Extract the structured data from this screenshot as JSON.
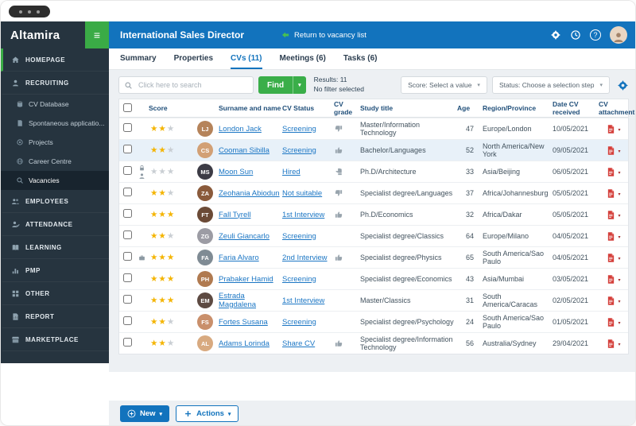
{
  "colors": {
    "sidebar_bg": "#26343f",
    "sidebar_active_bg": "#18242e",
    "accent_green": "#3aab46",
    "header_blue": "#1273bd",
    "link_blue": "#1b76c4",
    "star_gold": "#f4b400",
    "pdf_red": "#d43f3a",
    "content_bg": "#edf0f3"
  },
  "sidebar": {
    "logo": "Altamira",
    "items": [
      {
        "id": "homepage",
        "label": "HOMEPAGE",
        "icon": "home",
        "level": 1,
        "accent": true
      },
      {
        "id": "recruiting",
        "label": "RECRUITING",
        "icon": "recruit",
        "level": 1
      },
      {
        "id": "cv-database",
        "label": "CV Database",
        "icon": "db",
        "level": 2
      },
      {
        "id": "spontaneous-applications",
        "label": "Spontaneous applicatio...",
        "icon": "doc",
        "level": 2
      },
      {
        "id": "projects",
        "label": "Projects",
        "icon": "target",
        "level": 2
      },
      {
        "id": "career-centre",
        "label": "Career Centre",
        "icon": "globe",
        "level": 2
      },
      {
        "id": "vacancies",
        "label": "Vacancies",
        "icon": "magnifier",
        "level": 2,
        "active": true
      },
      {
        "id": "employees",
        "label": "EMPLOYEES",
        "icon": "people",
        "level": 1
      },
      {
        "id": "attendance",
        "label": "ATTENDANCE",
        "icon": "attendance",
        "level": 1
      },
      {
        "id": "learning",
        "label": "LEARNING",
        "icon": "book",
        "level": 1
      },
      {
        "id": "pmp",
        "label": "PMP",
        "icon": "pmp",
        "level": 1
      },
      {
        "id": "other",
        "label": "OTHER",
        "icon": "grid",
        "level": 1
      },
      {
        "id": "report",
        "label": "REPORT",
        "icon": "report",
        "level": 1
      },
      {
        "id": "marketplace",
        "label": "MARKETPLACE",
        "icon": "store",
        "level": 1
      }
    ]
  },
  "header": {
    "title": "International Sales Director",
    "back_label": "Return to vacancy list"
  },
  "tabs": [
    {
      "label": "Summary"
    },
    {
      "label": "Properties"
    },
    {
      "label": "CVs (11)",
      "active": true
    },
    {
      "label": "Meetings (6)"
    },
    {
      "label": "Tasks (6)"
    }
  ],
  "toolbar": {
    "search_placeholder": "Click here to search",
    "find_label": "Find",
    "results_line1": "Results: 11",
    "results_line2": "No filter selected",
    "score_filter": "Score: Select a value",
    "status_filter": "Status: Choose a selection step"
  },
  "table": {
    "columns": [
      "Score",
      "Surname and name",
      "CV Status",
      "CV grade",
      "Study title",
      "Age",
      "Region/Province",
      "Date CV received",
      "CV attachment"
    ],
    "rows": [
      {
        "surname_name": "London Jack",
        "stars": 2,
        "cv_status": "Screening",
        "grade": "down",
        "study_title": "Master/Information Technology",
        "age": "47",
        "region": "Europe/London",
        "date_received": "10/05/2021",
        "selected": false,
        "flags": [],
        "avatar_color": "#b5835a"
      },
      {
        "surname_name": "Cooman Sibilla",
        "stars": 2,
        "cv_status": "Screening",
        "grade": "up",
        "study_title": "Bachelor/Languages",
        "age": "52",
        "region": "North America/New York",
        "date_received": "09/05/2021",
        "selected": true,
        "flags": [],
        "avatar_color": "#d2a075"
      },
      {
        "surname_name": "Moon Sun",
        "stars": 0,
        "cv_status": "Hired",
        "grade": "neutral",
        "study_title": "Ph.D/Architecture",
        "age": "33",
        "region": "Asia/Beijing",
        "date_received": "06/05/2021",
        "selected": false,
        "flags": [
          "lock",
          "person"
        ],
        "avatar_color": "#3c3b45"
      },
      {
        "surname_name": "Zeohania Abiodun",
        "stars": 2,
        "cv_status": "Not suitable",
        "grade": "down",
        "study_title": "Specialist degree/Languages",
        "age": "37",
        "region": "Africa/Johannesburg",
        "date_received": "05/05/2021",
        "selected": false,
        "flags": [],
        "avatar_color": "#8a5a3b"
      },
      {
        "surname_name": "Fall Tyrell",
        "stars": 3,
        "cv_status": "1st Interview",
        "grade": "up",
        "study_title": "Ph.D/Economics",
        "age": "32",
        "region": "Africa/Dakar",
        "date_received": "05/05/2021",
        "selected": false,
        "flags": [],
        "avatar_color": "#6b4a36"
      },
      {
        "surname_name": "Zeuli Giancarlo",
        "stars": 2,
        "cv_status": "Screening",
        "grade": "",
        "study_title": "Specialist degree/Classics",
        "age": "64",
        "region": "Europe/Milano",
        "date_received": "04/05/2021",
        "selected": false,
        "flags": [],
        "avatar_color": "#9c9ca4"
      },
      {
        "surname_name": "Faria Alvaro",
        "stars": 3,
        "cv_status": "2nd Interview",
        "grade": "up",
        "study_title": "Specialist degree/Physics",
        "age": "65",
        "region": "South America/Sao Paulo",
        "date_received": "04/05/2021",
        "selected": false,
        "flags": [
          "briefcase"
        ],
        "avatar_color": "#7f8b94"
      },
      {
        "surname_name": "Prabaker Hamid",
        "stars": 3,
        "cv_status": "Screening",
        "grade": "",
        "study_title": "Specialist degree/Economics",
        "age": "43",
        "region": "Asia/Mumbai",
        "date_received": "03/05/2021",
        "selected": false,
        "flags": [],
        "avatar_color": "#b07a50"
      },
      {
        "surname_name": "Estrada Magdalena",
        "stars": 3,
        "cv_status": "1st Interview",
        "grade": "",
        "study_title": "Master/Classics",
        "age": "31",
        "region": "South America/Caracas",
        "date_received": "02/05/2021",
        "selected": false,
        "flags": [],
        "avatar_color": "#5d4a42"
      },
      {
        "surname_name": "Fortes Susana",
        "stars": 2,
        "cv_status": "Screening",
        "grade": "",
        "study_title": "Specialist degree/Psychology",
        "age": "24",
        "region": "South America/Sao Paulo",
        "date_received": "01/05/2021",
        "selected": false,
        "flags": [],
        "avatar_color": "#c98f6b"
      },
      {
        "surname_name": "Adams Lorinda",
        "stars": 2,
        "cv_status": "Share CV",
        "grade": "up",
        "study_title": "Specialist degree/Information Technology",
        "age": "56",
        "region": "Australia/Sydney",
        "date_received": "29/04/2021",
        "selected": false,
        "flags": [],
        "avatar_color": "#d8aa80"
      }
    ]
  },
  "footer": {
    "new_label": "New",
    "actions_label": "Actions"
  }
}
